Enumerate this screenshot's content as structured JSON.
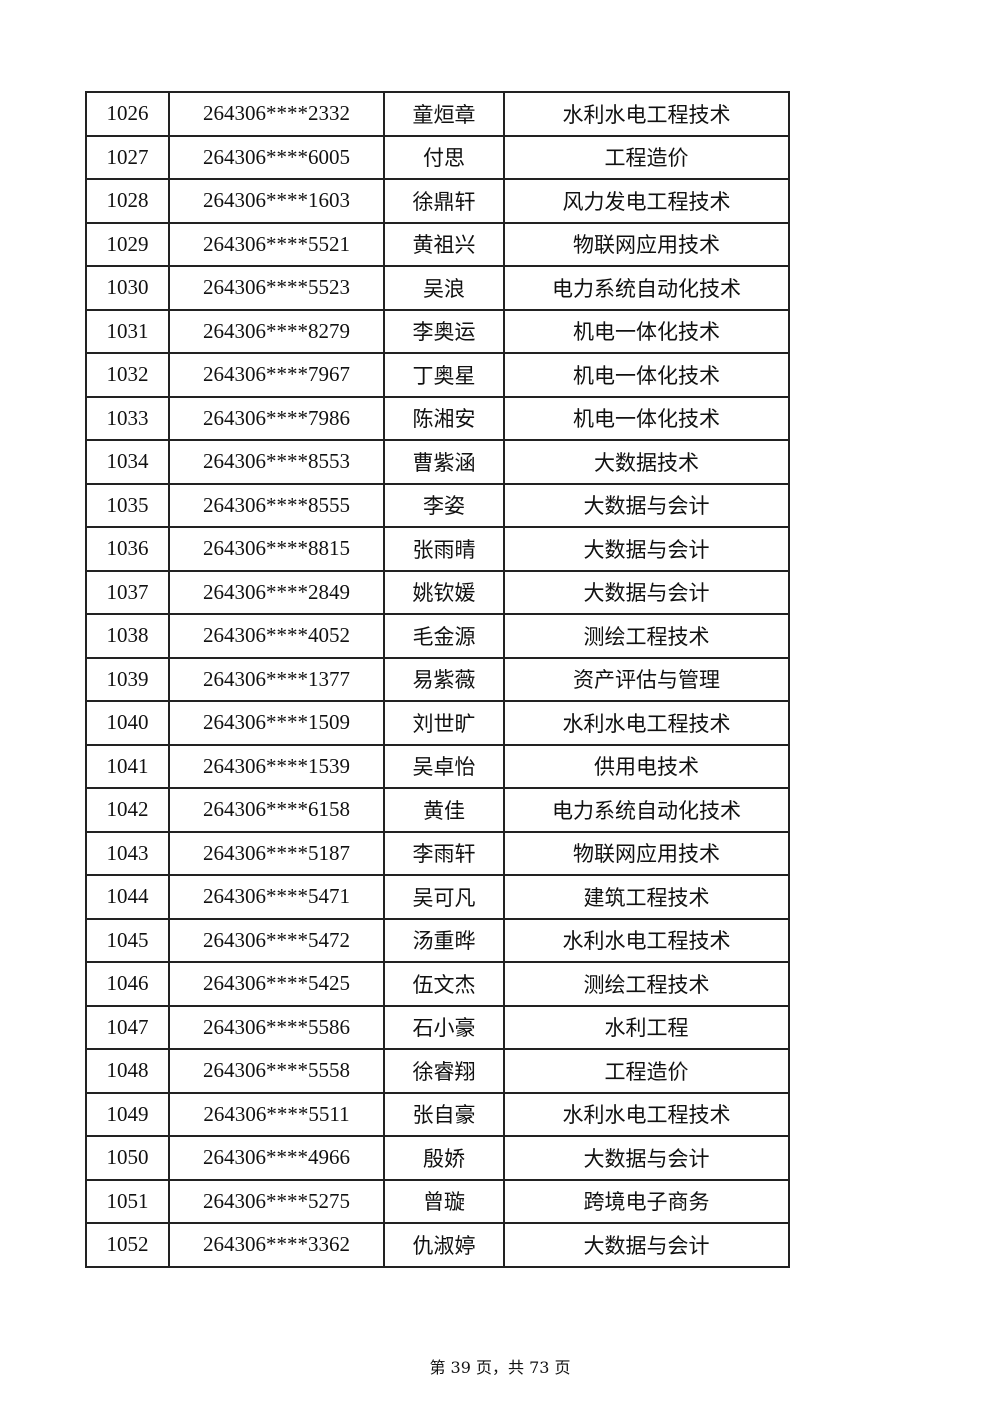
{
  "rows": [
    [
      "1026",
      "264306****2332",
      "童烜章",
      "水利水电工程技术"
    ],
    [
      "1027",
      "264306****6005",
      "付思",
      "工程造价"
    ],
    [
      "1028",
      "264306****1603",
      "徐鼎轩",
      "风力发电工程技术"
    ],
    [
      "1029",
      "264306****5521",
      "黄祖兴",
      "物联网应用技术"
    ],
    [
      "1030",
      "264306****5523",
      "吴浪",
      "电力系统自动化技术"
    ],
    [
      "1031",
      "264306****8279",
      "李奥运",
      "机电一体化技术"
    ],
    [
      "1032",
      "264306****7967",
      "丁奥星",
      "机电一体化技术"
    ],
    [
      "1033",
      "264306****7986",
      "陈湘安",
      "机电一体化技术"
    ],
    [
      "1034",
      "264306****8553",
      "曹紫涵",
      "大数据技术"
    ],
    [
      "1035",
      "264306****8555",
      "李姿",
      "大数据与会计"
    ],
    [
      "1036",
      "264306****8815",
      "张雨晴",
      "大数据与会计"
    ],
    [
      "1037",
      "264306****2849",
      "姚钦媛",
      "大数据与会计"
    ],
    [
      "1038",
      "264306****4052",
      "毛金源",
      "测绘工程技术"
    ],
    [
      "1039",
      "264306****1377",
      "易紫薇",
      "资产评估与管理"
    ],
    [
      "1040",
      "264306****1509",
      "刘世旷",
      "水利水电工程技术"
    ],
    [
      "1041",
      "264306****1539",
      "吴卓怡",
      "供用电技术"
    ],
    [
      "1042",
      "264306****6158",
      "黄佳",
      "电力系统自动化技术"
    ],
    [
      "1043",
      "264306****5187",
      "李雨轩",
      "物联网应用技术"
    ],
    [
      "1044",
      "264306****5471",
      "吴可凡",
      "建筑工程技术"
    ],
    [
      "1045",
      "264306****5472",
      "汤重晔",
      "水利水电工程技术"
    ],
    [
      "1046",
      "264306****5425",
      "伍文杰",
      "测绘工程技术"
    ],
    [
      "1047",
      "264306****5586",
      "石小豪",
      "水利工程"
    ],
    [
      "1048",
      "264306****5558",
      "徐睿翔",
      "工程造价"
    ],
    [
      "1049",
      "264306****5511",
      "张自豪",
      "水利水电工程技术"
    ],
    [
      "1050",
      "264306****4966",
      "殷娇",
      "大数据与会计"
    ],
    [
      "1051",
      "264306****5275",
      "曾璇",
      "跨境电子商务"
    ],
    [
      "1052",
      "264306****3362",
      "仇淑婷",
      "大数据与会计"
    ]
  ],
  "footer": "第 39 页，共 73 页"
}
